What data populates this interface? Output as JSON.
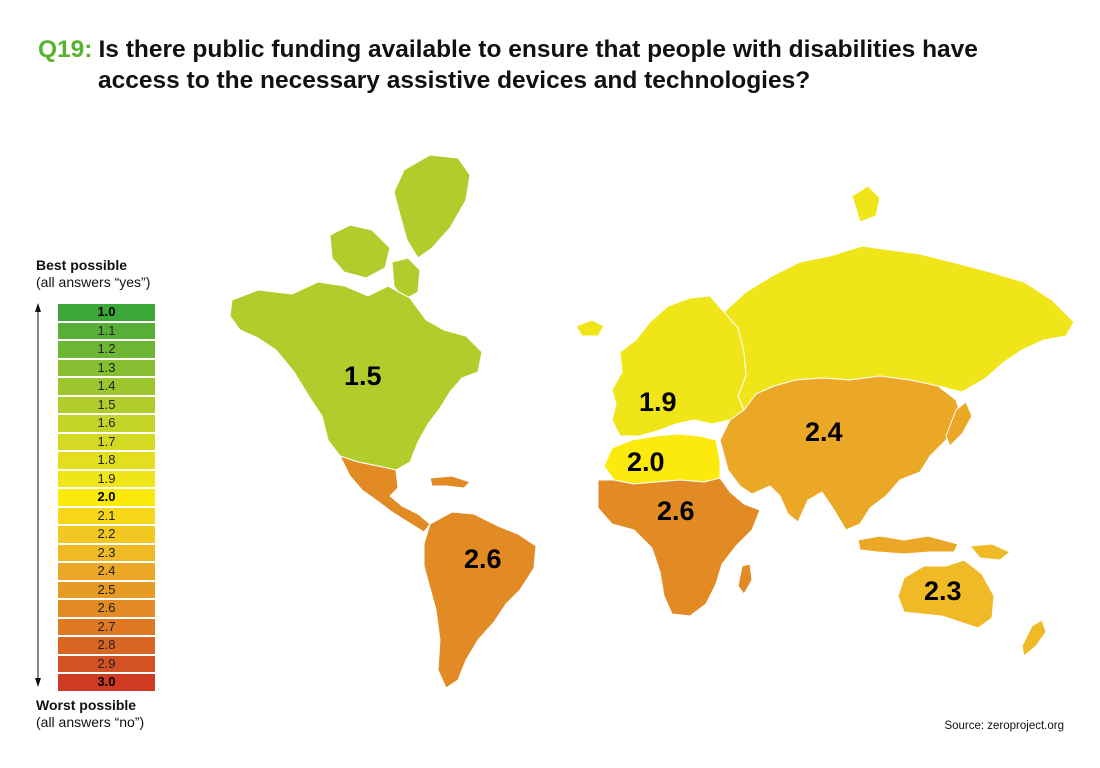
{
  "title": {
    "question_number": "Q19:",
    "line1": "Is there public funding available to ensure that people with disabilities have",
    "line2": "access to the necessary assistive devices and technologies?"
  },
  "legend": {
    "best_title": "Best possible",
    "best_sub": "(all answers “yes”)",
    "worst_title": "Worst possible",
    "worst_sub": "(all answers “no”)",
    "scale": [
      {
        "label": "1.0",
        "color": "#3ea73a",
        "bold": true
      },
      {
        "label": "1.1",
        "color": "#57af37",
        "bold": false
      },
      {
        "label": "1.2",
        "color": "#6db734",
        "bold": false
      },
      {
        "label": "1.3",
        "color": "#86bf31",
        "bold": false
      },
      {
        "label": "1.4",
        "color": "#9cc62e",
        "bold": false
      },
      {
        "label": "1.5",
        "color": "#b1cd2b",
        "bold": false
      },
      {
        "label": "1.6",
        "color": "#c4d428",
        "bold": false
      },
      {
        "label": "1.7",
        "color": "#d4da24",
        "bold": false
      },
      {
        "label": "1.8",
        "color": "#e3df1e",
        "bold": false
      },
      {
        "label": "1.9",
        "color": "#f0e518",
        "bold": false
      },
      {
        "label": "2.0",
        "color": "#fbea0c",
        "bold": true
      },
      {
        "label": "2.1",
        "color": "#f8d71b",
        "bold": false
      },
      {
        "label": "2.2",
        "color": "#f3c822",
        "bold": false
      },
      {
        "label": "2.3",
        "color": "#efba25",
        "bold": false
      },
      {
        "label": "2.4",
        "color": "#eaa826",
        "bold": false
      },
      {
        "label": "2.5",
        "color": "#e69b25",
        "bold": false
      },
      {
        "label": "2.6",
        "color": "#e28a24",
        "bold": false
      },
      {
        "label": "2.7",
        "color": "#de7822",
        "bold": false
      },
      {
        "label": "2.8",
        "color": "#d96522",
        "bold": false
      },
      {
        "label": "2.9",
        "color": "#d45123",
        "bold": false
      },
      {
        "label": "3.0",
        "color": "#cf3a22",
        "bold": true
      }
    ]
  },
  "regions": [
    {
      "id": "north-america",
      "label": "1.5",
      "color": "#b1cd2b"
    },
    {
      "id": "latin-america",
      "label": "2.6",
      "color": "#e28a24"
    },
    {
      "id": "europe",
      "label": "1.9",
      "color": "#f0e518"
    },
    {
      "id": "north-africa",
      "label": "2.0",
      "color": "#fbea0c"
    },
    {
      "id": "sub-saharan-africa",
      "label": "2.6",
      "color": "#e28a24"
    },
    {
      "id": "asia",
      "label": "2.4",
      "color": "#eaa826"
    },
    {
      "id": "oceania",
      "label": "2.3",
      "color": "#efba25"
    }
  ],
  "source": "Source: zeroproject.org"
}
